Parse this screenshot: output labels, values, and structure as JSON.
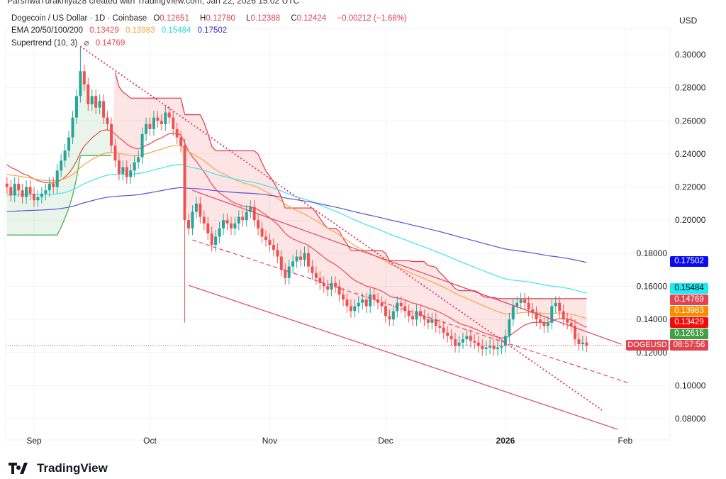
{
  "credit": "ParshwaTurakhiya28 created with TradingView.com, Jan 22, 2026 15:02 UTC",
  "legend": {
    "symbol": "Dogecoin / US Dollar · 1D · Coinbase",
    "o_label": "O",
    "o": "0.12651",
    "h_label": "H",
    "h": "0.12780",
    "l_label": "L",
    "l": "0.12388",
    "c_label": "C",
    "c": "0.12424",
    "change": "−0.00212 (−1.68%)",
    "ema_label": "EMA 20/50/100/200",
    "ema20": "0.13429",
    "ema50": "0.13983",
    "ema100": "0.15484",
    "ema200": "0.17502",
    "supertrend_label": "Supertrend (10, 3)",
    "supertrend_icon": "eye-slash-icon",
    "supertrend": "0.14769"
  },
  "currency": "USD",
  "footer_brand": "TradingView",
  "price_tags": [
    {
      "value": "0.17502",
      "color": "#0b0bf0",
      "text_color": "#ffffff"
    },
    {
      "value": "0.15484",
      "color": "#1ee8f0",
      "text_color": "#111111"
    },
    {
      "value": "0.14769",
      "color": "#e2434f",
      "text_color": "#ffffff"
    },
    {
      "value": "0.13983",
      "color": "#fb8c00",
      "text_color": "#ffffff"
    },
    {
      "value": "0.13429",
      "color": "#f50a0a",
      "text_color": "#ffffff"
    },
    {
      "value": "0.12615",
      "color": "#43a047",
      "text_color": "#ffffff"
    }
  ],
  "symbol_tag": {
    "symbol": "DOGEUSD",
    "countdown": "08:57:56"
  },
  "chart_data": {
    "type": "candlestick",
    "title": "Dogecoin / US Dollar · 1D · Coinbase",
    "start_date": "2025-08-25",
    "ylim": [
      0.07,
      0.31
    ],
    "y_ticks": [
      "0.30000",
      "0.28000",
      "0.26000",
      "0.24000",
      "0.22000",
      "0.20000",
      "0.18000",
      "0.16000",
      "0.14000",
      "0.12000",
      "0.10000",
      "0.08000"
    ],
    "x_ticks": [
      {
        "label": "Sep",
        "date": "2025-09-01"
      },
      {
        "label": "Oct",
        "date": "2025-10-01"
      },
      {
        "label": "Nov",
        "date": "2025-11-01"
      },
      {
        "label": "Dec",
        "date": "2025-12-01"
      },
      {
        "label": "2026",
        "date": "2026-01-01",
        "bold": true
      },
      {
        "label": "Feb",
        "date": "2026-02-01"
      }
    ],
    "close": [
      0.22,
      0.215,
      0.222,
      0.218,
      0.214,
      0.22,
      0.216,
      0.212,
      0.214,
      0.216,
      0.218,
      0.222,
      0.22,
      0.23,
      0.236,
      0.242,
      0.25,
      0.262,
      0.275,
      0.29,
      0.282,
      0.27,
      0.275,
      0.268,
      0.272,
      0.262,
      0.258,
      0.245,
      0.236,
      0.228,
      0.232,
      0.226,
      0.23,
      0.235,
      0.238,
      0.252,
      0.258,
      0.255,
      0.262,
      0.26,
      0.258,
      0.265,
      0.262,
      0.255,
      0.25,
      0.245,
      0.2,
      0.195,
      0.205,
      0.21,
      0.202,
      0.198,
      0.192,
      0.185,
      0.19,
      0.195,
      0.2,
      0.198,
      0.195,
      0.198,
      0.202,
      0.2,
      0.205,
      0.208,
      0.2,
      0.195,
      0.19,
      0.188,
      0.185,
      0.182,
      0.178,
      0.17,
      0.165,
      0.172,
      0.175,
      0.178,
      0.176,
      0.18,
      0.172,
      0.168,
      0.165,
      0.162,
      0.16,
      0.158,
      0.162,
      0.16,
      0.155,
      0.152,
      0.148,
      0.145,
      0.148,
      0.15,
      0.152,
      0.148,
      0.155,
      0.152,
      0.15,
      0.148,
      0.142,
      0.14,
      0.145,
      0.15,
      0.148,
      0.145,
      0.142,
      0.14,
      0.145,
      0.142,
      0.14,
      0.138,
      0.14,
      0.136,
      0.135,
      0.132,
      0.13,
      0.128,
      0.124,
      0.126,
      0.128,
      0.13,
      0.127,
      0.126,
      0.124,
      0.122,
      0.123,
      0.124,
      0.122,
      0.123,
      0.124,
      0.13,
      0.14,
      0.148,
      0.15,
      0.152,
      0.15,
      0.146,
      0.144,
      0.14,
      0.138,
      0.136,
      0.138,
      0.148,
      0.15,
      0.145,
      0.14,
      0.138,
      0.136,
      0.128,
      0.125,
      0.126,
      0.12424
    ],
    "wick_extremes": [
      {
        "date": "2025-09-13",
        "high": 0.305
      },
      {
        "date": "2025-10-10",
        "low": 0.138
      }
    ],
    "ema_periods": [
      20,
      50,
      100,
      200
    ],
    "ema_colors": [
      "#f0474f",
      "#f5a742",
      "#3fe6ee",
      "#5b4fd6"
    ],
    "supertrend": {
      "period": 10,
      "multiplier": 3,
      "up_color": "#4caf50",
      "down_color": "#e2434f"
    },
    "trendlines": [
      {
        "name": "channel-upper",
        "from": [
          "2025-10-12",
          0.218
        ],
        "to": [
          "2026-01-31",
          0.125
        ],
        "style": "solid"
      },
      {
        "name": "channel-middle",
        "from": [
          "2025-10-12",
          0.188
        ],
        "to": [
          "2026-02-02",
          0.1015
        ],
        "style": "dashed"
      },
      {
        "name": "channel-lower",
        "from": [
          "2025-10-11",
          0.1606
        ],
        "to": [
          "2026-01-30",
          0.0736
        ],
        "style": "solid"
      },
      {
        "name": "resistance-dotted",
        "from": [
          "2025-09-13",
          0.305
        ],
        "to": [
          "2026-01-26",
          0.0852
        ],
        "style": "dotted"
      },
      {
        "name": "current-price",
        "price": 0.12424,
        "style": "dotted"
      }
    ],
    "up_color": "#26a69a",
    "down_color": "#ef5350"
  }
}
